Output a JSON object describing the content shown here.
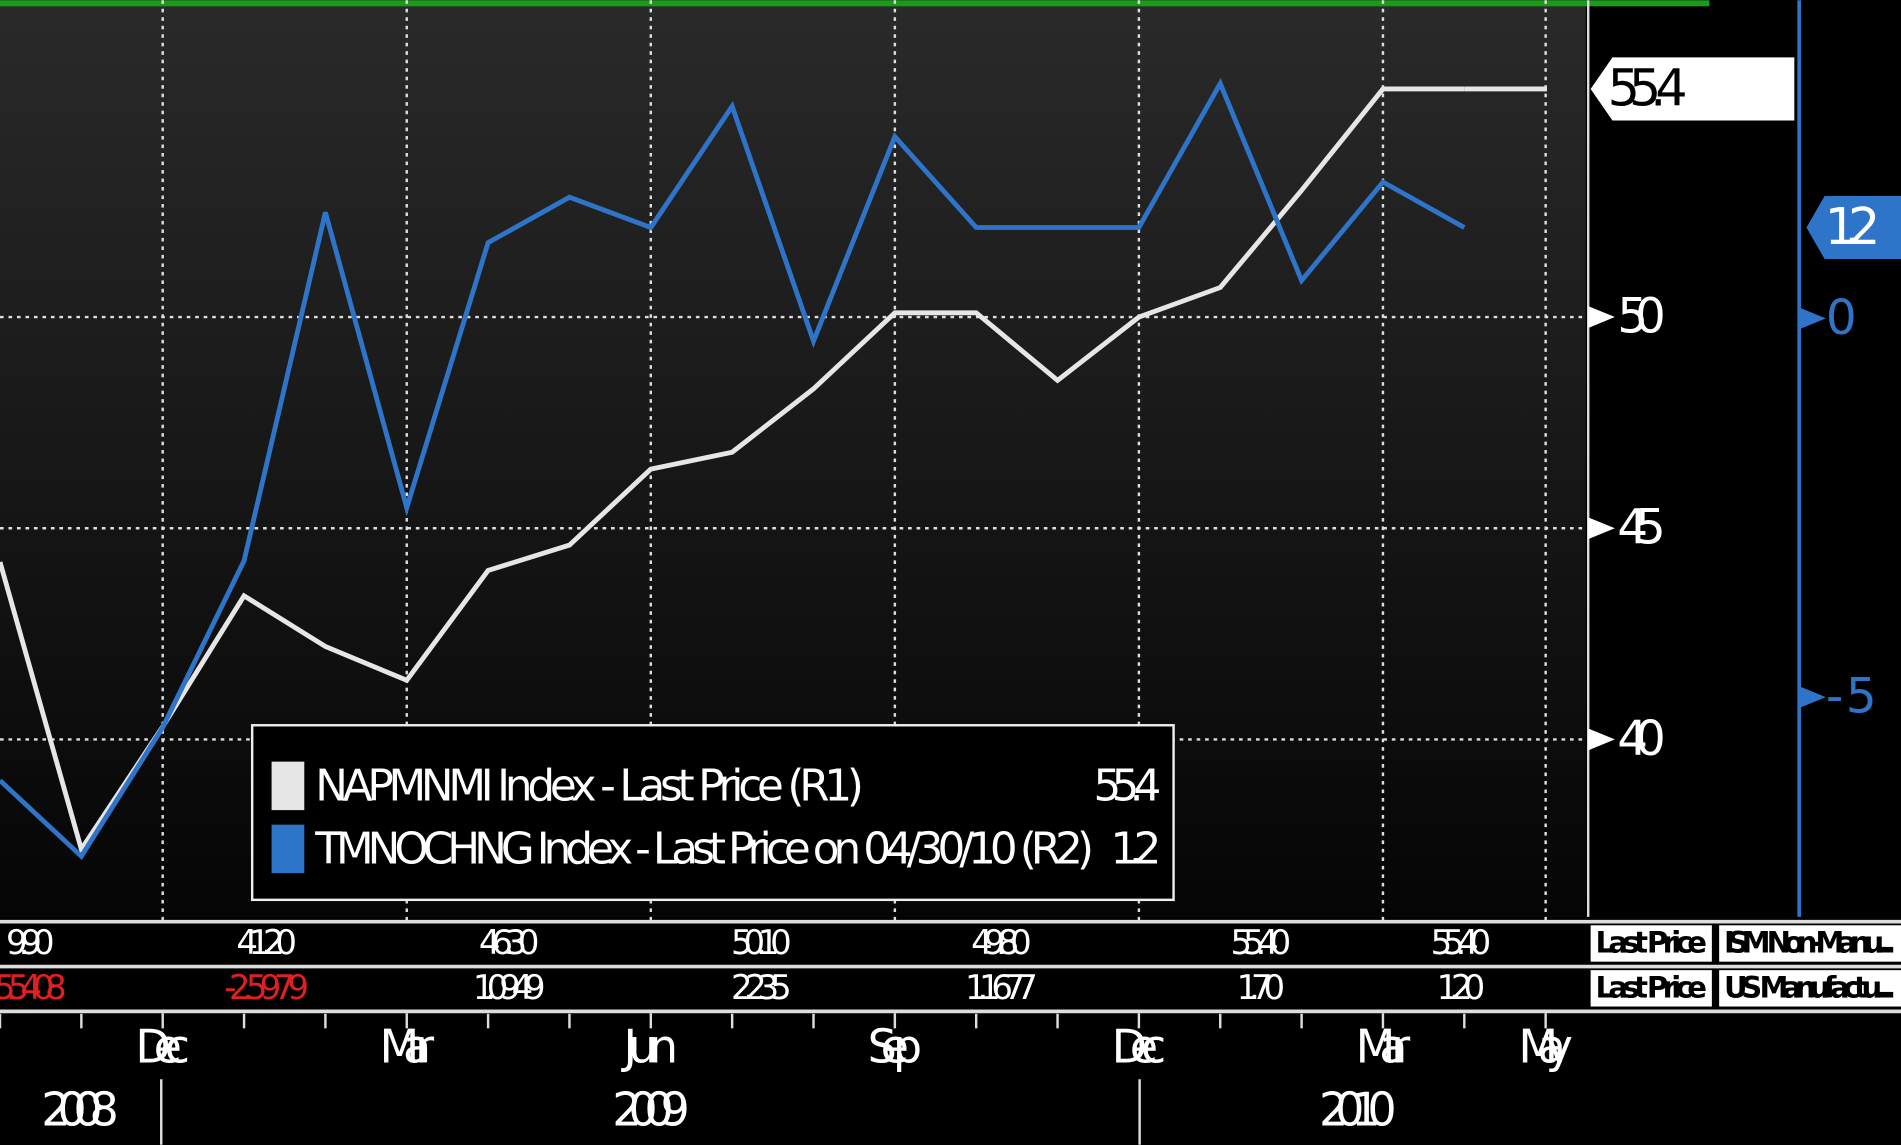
{
  "chart_data": {
    "type": "line",
    "categories": [
      null,
      null,
      "Dec",
      null,
      null,
      "Mar",
      null,
      null,
      "Jun",
      null,
      null,
      "Sep",
      null,
      null,
      "Dec",
      null,
      null,
      "Mar",
      null,
      "May"
    ],
    "years": [
      "2008",
      "2009",
      "2010"
    ],
    "series": [
      {
        "name": "NAPMNMI Index - Last Price (R1)",
        "color": "#e6e6e6",
        "axis": "y",
        "tag": "55.4",
        "values": [
          44.2,
          37.4,
          40.3,
          43.4,
          42.2,
          41.4,
          44.0,
          44.6,
          46.4,
          46.8,
          48.3,
          50.1,
          50.1,
          48.5,
          50.0,
          50.7,
          53.0,
          55.4,
          55.4,
          null
        ]
      },
      {
        "name": "TMNOCHNG Index - Last Price on 04/30/10 (R2)",
        "color": "#2e74c8",
        "axis": "y2",
        "tag": "1.2",
        "values": [
          -6.1,
          -7.1,
          -5.4,
          -3.2,
          1.4,
          -2.5,
          1.0,
          1.6,
          1.2,
          2.8,
          -0.3,
          2.4,
          1.2,
          1.2,
          1.2,
          3.1,
          0.5,
          1.8,
          1.2,
          null
        ]
      }
    ],
    "ylim": [
      35.8,
      57.5
    ],
    "yticks": [
      40,
      45,
      50
    ],
    "y2lim": [
      -7.9,
      4.2
    ],
    "y2ticks": [
      -5,
      0
    ],
    "grid": true,
    "table": {
      "rows": [
        {
          "label": "Last Price",
          "name": "ISM Non-Manu...",
          "cells": [
            "9.90",
            "41.20",
            "46.30",
            "50.10",
            "49.80",
            "55.40",
            "55.40"
          ]
        },
        {
          "label": "Last Price",
          "name": "US Manufactu...",
          "cells": [
            "5.5408",
            "-2.5979",
            "1.0949",
            "2.235",
            "1.1677",
            "1.70",
            "1.20"
          ]
        }
      ]
    }
  }
}
